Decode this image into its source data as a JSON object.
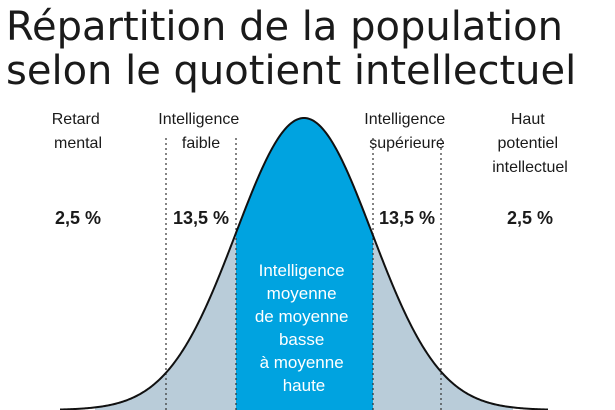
{
  "title": {
    "line1": "Répartition de la population",
    "line2": "selon le quotient intellectuel"
  },
  "categories": [
    {
      "label_lines": [
        "Retard",
        "mental"
      ],
      "percent": "2,5 %"
    },
    {
      "label_lines": [
        "Intelligence",
        "faible"
      ],
      "percent": "13,5 %"
    },
    {
      "label_lines": [
        "Intelligence",
        "moyenne",
        "de moyenne",
        "basse",
        "à moyenne",
        "haute"
      ],
      "percent": ""
    },
    {
      "label_lines": [
        "Intelligence",
        "supérieure"
      ],
      "percent": "13,5 %"
    },
    {
      "label_lines": [
        "Haut",
        "potentiel",
        "intellectuel"
      ],
      "percent": "2,5 %"
    }
  ],
  "colors": {
    "center_region": "#00a3e0",
    "outer_regions": "#b9ccd9",
    "curve_stroke": "#111111",
    "divider_lines": "#333333",
    "center_text": "#ffffff"
  }
}
